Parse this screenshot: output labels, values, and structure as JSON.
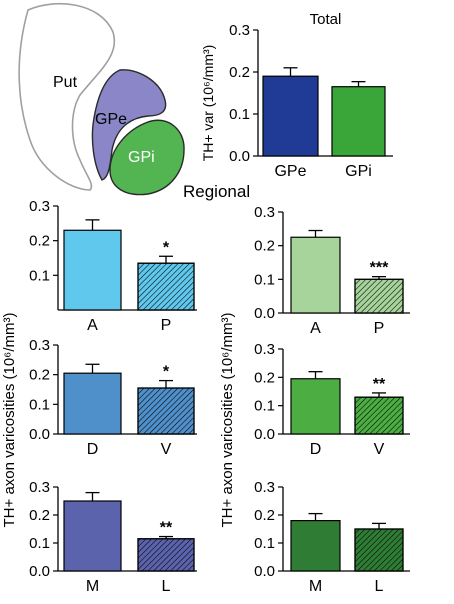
{
  "figure": {
    "anatomy": {
      "labels": {
        "putamen": "Put",
        "gpe": "GPe",
        "gpi": "GPi"
      }
    },
    "section_label": "Regional",
    "shared_ylabel_total": "TH+ var (10⁶/mm³)",
    "shared_ylabel_regional": "TH+ axon varicosities (10⁶/mm³)"
  },
  "colors": {
    "gpe_total": "#1f3b96",
    "gpi_total": "#3aa63a",
    "A_gpe": "#5fc8ec",
    "D_gpe": "#4f8fca",
    "M_gpe": "#5c63ad",
    "A_gpi": "#a6d49a",
    "D_gpi": "#4cae42",
    "M_gpi": "#2f7d35",
    "gpe_region_fill": "#8a86c7",
    "gpi_region_fill": "#52b552"
  },
  "chart_data": [
    {
      "id": "total",
      "type": "bar",
      "title": "Total",
      "ylabel": "TH+ var (10⁶/mm³)",
      "categories": [
        "GPe",
        "GPi"
      ],
      "values": [
        0.19,
        0.165
      ],
      "errors": [
        0.02,
        0.012
      ],
      "significance": [
        "",
        ""
      ],
      "hatched": [
        false,
        false
      ],
      "ylim": [
        0,
        0.3
      ],
      "yticks": [
        "0.0",
        "0.1",
        "0.2",
        "0.3"
      ]
    },
    {
      "id": "gpe_ap",
      "type": "bar",
      "categories": [
        "A",
        "P"
      ],
      "values": [
        0.23,
        0.135
      ],
      "errors": [
        0.03,
        0.02
      ],
      "significance": [
        "",
        "*"
      ],
      "hatched": [
        false,
        true
      ],
      "ylim": [
        0,
        0.3
      ],
      "yticks": [
        "0.1",
        "0.2",
        "0.3"
      ]
    },
    {
      "id": "gpi_ap",
      "type": "bar",
      "categories": [
        "A",
        "P"
      ],
      "values": [
        0.225,
        0.1
      ],
      "errors": [
        0.02,
        0.008
      ],
      "significance": [
        "",
        "***"
      ],
      "hatched": [
        false,
        true
      ],
      "ylim": [
        0,
        0.3
      ],
      "yticks": [
        "0.0",
        "0.1",
        "0.2",
        "0.3"
      ]
    },
    {
      "id": "gpe_dv",
      "type": "bar",
      "categories": [
        "D",
        "V"
      ],
      "values": [
        0.205,
        0.155
      ],
      "errors": [
        0.03,
        0.025
      ],
      "significance": [
        "",
        "*"
      ],
      "hatched": [
        false,
        true
      ],
      "ylim": [
        0,
        0.3
      ],
      "yticks": [
        "0.0",
        "0.1",
        "0.2",
        "0.3"
      ]
    },
    {
      "id": "gpi_dv",
      "type": "bar",
      "categories": [
        "D",
        "V"
      ],
      "values": [
        0.195,
        0.13
      ],
      "errors": [
        0.025,
        0.015
      ],
      "significance": [
        "",
        "**"
      ],
      "hatched": [
        false,
        true
      ],
      "ylim": [
        0,
        0.3
      ],
      "yticks": [
        "0.0",
        "0.1",
        "0.2",
        "0.3"
      ]
    },
    {
      "id": "gpe_ml",
      "type": "bar",
      "categories": [
        "M",
        "L"
      ],
      "values": [
        0.25,
        0.115
      ],
      "errors": [
        0.03,
        0.008
      ],
      "significance": [
        "",
        "**"
      ],
      "hatched": [
        false,
        true
      ],
      "ylim": [
        0,
        0.3
      ],
      "yticks": [
        "0.0",
        "0.1",
        "0.2",
        "0.3"
      ]
    },
    {
      "id": "gpi_ml",
      "type": "bar",
      "categories": [
        "M",
        "L"
      ],
      "values": [
        0.18,
        0.15
      ],
      "errors": [
        0.025,
        0.02
      ],
      "significance": [
        "",
        ""
      ],
      "hatched": [
        false,
        true
      ],
      "ylim": [
        0,
        0.3
      ],
      "yticks": [
        "0.0",
        "0.1",
        "0.2",
        "0.3"
      ]
    }
  ]
}
